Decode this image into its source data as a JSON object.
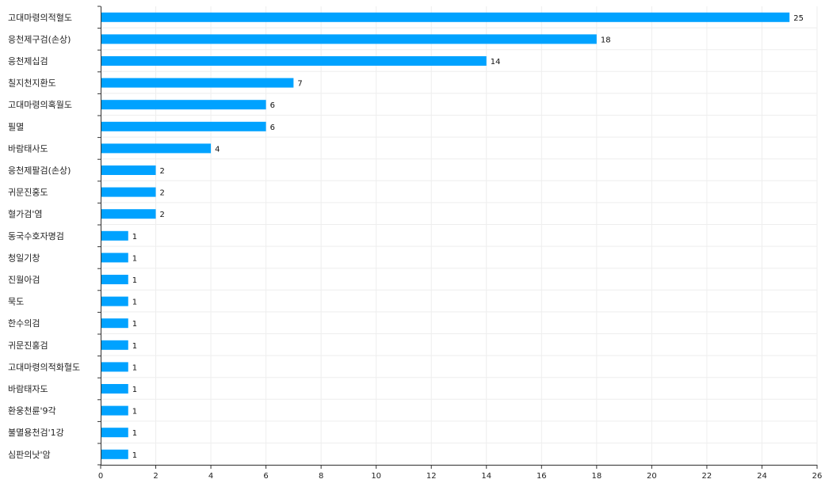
{
  "chart_data": {
    "type": "bar",
    "orientation": "horizontal",
    "title": "",
    "xlabel": "",
    "ylabel": "",
    "xlim": [
      0,
      26
    ],
    "x_ticks": [
      0,
      2,
      4,
      6,
      8,
      10,
      12,
      14,
      16,
      18,
      20,
      22,
      24,
      26
    ],
    "grid": true,
    "bar_color": "#00a2ff",
    "categories": [
      "고대마령의적혈도",
      "응천제구검(손상)",
      "응천제십검",
      "칠지천지환도",
      "고대마령의혹월도",
      "필멸",
      "바람태사도",
      "응천제팔검(손상)",
      "귀문진홍도",
      "혈가검'염",
      "동국수호자명검",
      "청일기창",
      "진월아검",
      "묵도",
      "한수의검",
      "귀문진홍검",
      "고대마령의적화혈도",
      "바람태자도",
      "환웅천륜'9각",
      "불멸용천검'1강",
      "심판의낫'암"
    ],
    "values": [
      25,
      18,
      14,
      7,
      6,
      6,
      4,
      2,
      2,
      2,
      1,
      1,
      1,
      1,
      1,
      1,
      1,
      1,
      1,
      1,
      1
    ]
  }
}
